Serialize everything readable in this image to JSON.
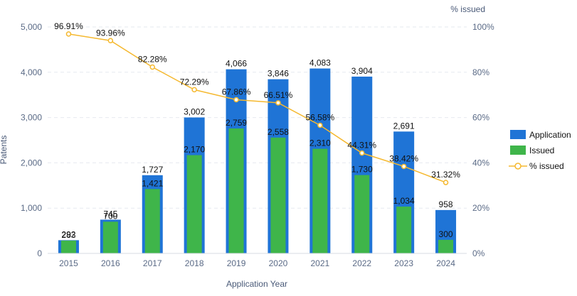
{
  "chart_data": {
    "type": "bar",
    "title": "",
    "xlabel": "Application Year",
    "ylabel": "Patents",
    "y2label": "% issued",
    "categories": [
      "2015",
      "2016",
      "2017",
      "2018",
      "2019",
      "2020",
      "2021",
      "2022",
      "2023",
      "2024"
    ],
    "ylim": [
      0,
      5000
    ],
    "yticks": [
      "0",
      "1,000",
      "2,000",
      "3,000",
      "4,000",
      "5,000"
    ],
    "y2lim": [
      0,
      100
    ],
    "y2ticks": [
      "0%",
      "20%",
      "40%",
      "60%",
      "80%",
      "100%"
    ],
    "grid": true,
    "legend_position": "right",
    "series": [
      {
        "name": "Application",
        "kind": "bar",
        "color": "#1f74d6",
        "values": [
          292,
          745,
          1727,
          3002,
          4066,
          3846,
          4083,
          3904,
          2691,
          958
        ],
        "labels": [
          "292",
          "745",
          "1,727",
          "3,002",
          "4,066",
          "3,846",
          "4,083",
          "3,904",
          "2,691",
          "958"
        ]
      },
      {
        "name": "Issued",
        "kind": "bar",
        "color": "#3fb54a",
        "values": [
          283,
          700,
          1421,
          2170,
          2759,
          2558,
          2310,
          1730,
          1034,
          300
        ],
        "labels": [
          "283",
          "700",
          "1,421",
          "2,170",
          "2,759",
          "2,558",
          "2,310",
          "1,730",
          "1,034",
          "300"
        ]
      },
      {
        "name": "% issued",
        "kind": "line",
        "axis": "right",
        "color": "#f5b82e",
        "values": [
          96.91,
          93.96,
          82.28,
          72.29,
          67.86,
          66.51,
          56.58,
          44.31,
          38.42,
          31.32
        ],
        "labels": [
          "96.91%",
          "93.96%",
          "82.28%",
          "72.29%",
          "67.86%",
          "66.51%",
          "56.58%",
          "44.31%",
          "38.42%",
          "31.32%"
        ]
      }
    ]
  }
}
